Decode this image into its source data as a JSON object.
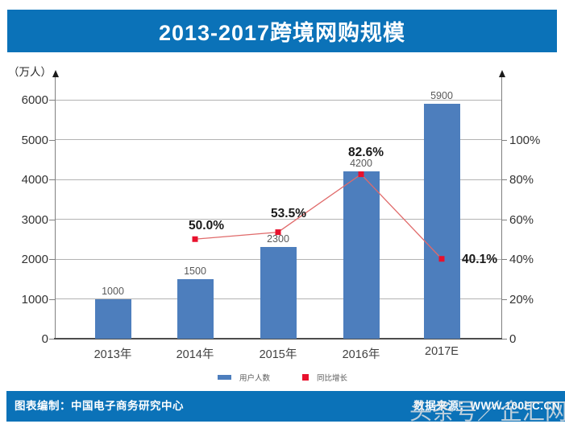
{
  "title": "2013-2017跨境网购规模",
  "unit_label": "（万人）",
  "legend": {
    "items": [
      {
        "label": "用户人数",
        "swatch": "bar-swatch-icon"
      },
      {
        "label": "同比增长",
        "swatch": "point-swatch-icon"
      }
    ]
  },
  "footer": {
    "left": "图表编制：中国电子商务研究中心",
    "right": "数据来源：WWW.100EC.CN"
  },
  "watermark": "头条号／企汇网",
  "colors": {
    "banner_blue": "#0b72b8",
    "bar_blue": "#4d7ebd",
    "line_red": "#e06a6a",
    "marker_red": "#e8112d",
    "grid_gray": "#b3b3b3",
    "axis_gray": "#808080"
  },
  "chart_data": {
    "type": "bar",
    "title": "2013-2017跨境网购规模",
    "categories": [
      "2013年",
      "2014年",
      "2015年",
      "2016年",
      "2017E"
    ],
    "series": [
      {
        "name": "用户人数",
        "type": "bar",
        "values": [
          1000,
          1500,
          2300,
          4200,
          5900
        ],
        "labels": [
          "1000",
          "1500",
          "2300",
          "4200",
          "5900"
        ]
      },
      {
        "name": "同比增长",
        "type": "line",
        "values": [
          null,
          50.0,
          53.5,
          82.6,
          40.1
        ],
        "labels": [
          null,
          "50.0%",
          "53.5%",
          "82.6%",
          "40.1%"
        ]
      }
    ],
    "left_axis": {
      "title": "（万人）",
      "ticks": [
        0,
        1000,
        2000,
        3000,
        4000,
        5000,
        6000
      ],
      "tick_labels": [
        "0",
        "1000",
        "2000",
        "3000",
        "4000",
        "5000",
        "6000"
      ],
      "range": [
        0,
        6500
      ]
    },
    "right_axis": {
      "ticks": [
        0,
        20,
        40,
        60,
        80,
        100
      ],
      "tick_labels": [
        "0",
        "20%",
        "40%",
        "60%",
        "80%",
        "100%"
      ],
      "range": [
        0,
        130
      ]
    },
    "grid": true,
    "legend_position": "bottom"
  }
}
